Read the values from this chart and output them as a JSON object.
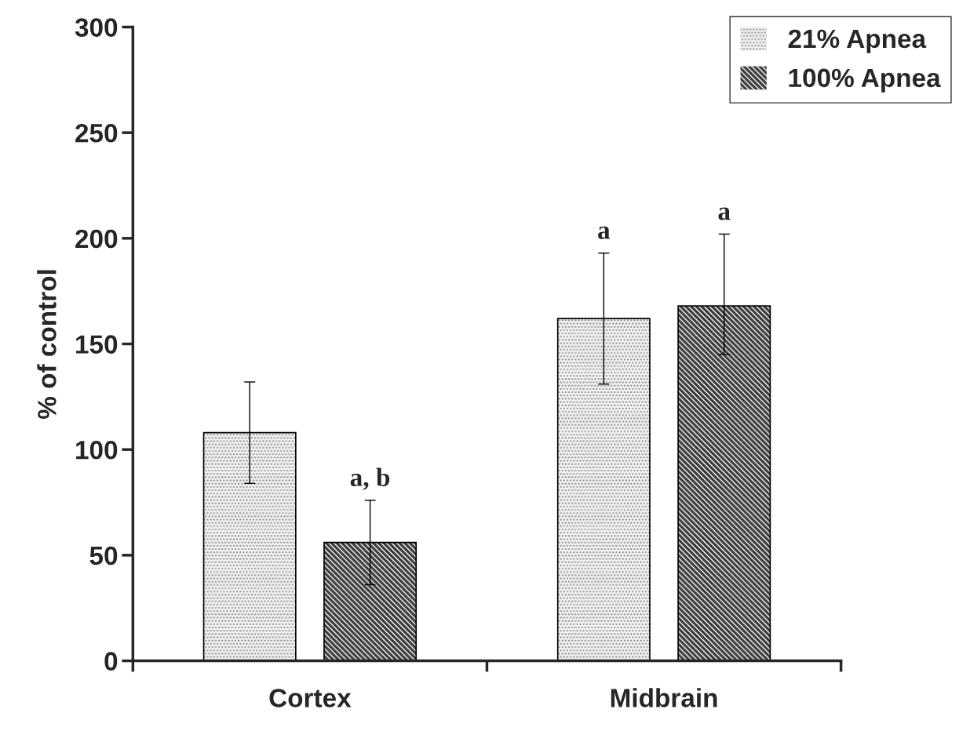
{
  "chart_data": {
    "type": "bar",
    "ylabel": "% of control",
    "categories": [
      "Cortex",
      "Midbrain"
    ],
    "series": [
      {
        "name": "21% Apnea",
        "color": "#f2f2f2",
        "values": [
          108,
          162
        ],
        "errors": [
          24,
          31
        ]
      },
      {
        "name": "100% Apnea",
        "color": "#3a3a3a",
        "values": [
          56,
          168
        ],
        "errors": [
          20,
          [
            145,
            202
          ]
        ]
      }
    ],
    "annotations": [
      "a, b",
      "a",
      "a"
    ],
    "ylim": [
      0,
      300
    ],
    "yticks": [
      0,
      50,
      100,
      150,
      200,
      250,
      300
    ],
    "grid": false,
    "legend": "top right"
  }
}
